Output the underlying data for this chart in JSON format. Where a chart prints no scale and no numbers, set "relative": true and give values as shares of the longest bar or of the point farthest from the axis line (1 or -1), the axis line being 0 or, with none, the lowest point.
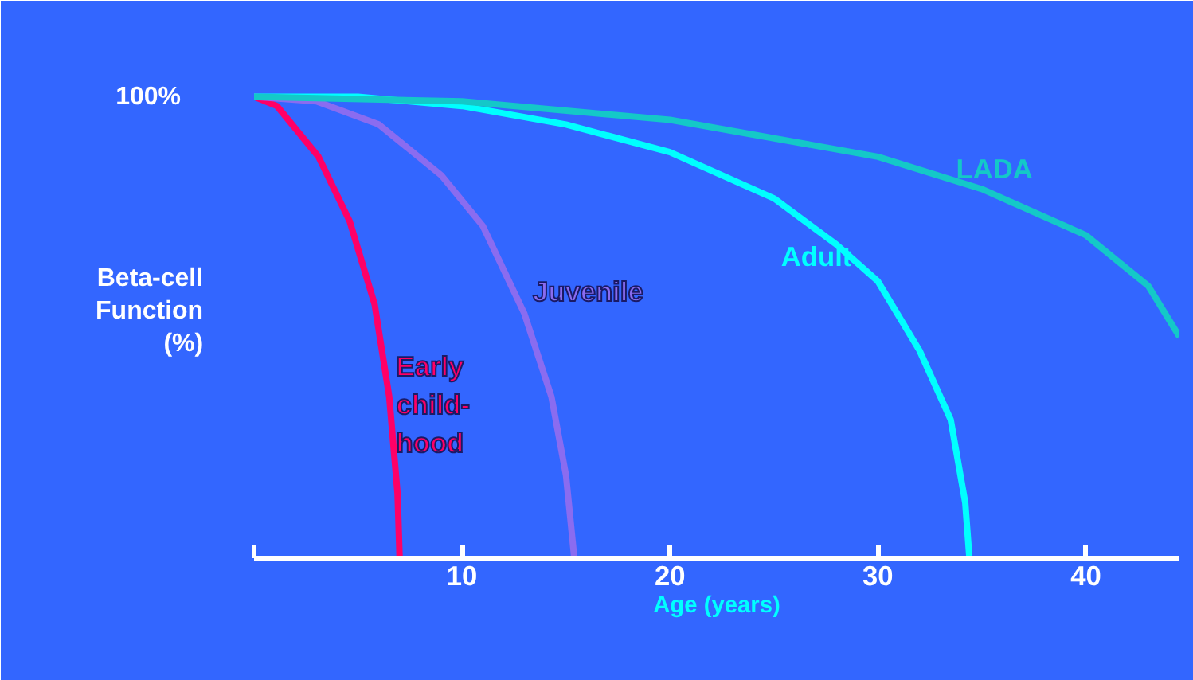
{
  "chart_data": {
    "type": "line",
    "relative": true,
    "xlabel": "Age (years)",
    "ylabel": "Beta-cell\nFunction\n(%)",
    "annotations": [
      "100%"
    ],
    "xlim": [
      0,
      44.5
    ],
    "xticks": [
      {
        "value": 0,
        "label": null
      },
      10,
      20,
      30,
      40
    ],
    "grid": false,
    "legend": false,
    "marker": "none",
    "line_style": "solid",
    "series": [
      {
        "name": "Early\nchild-\nhood",
        "color": "#ff0066",
        "x": [
          0,
          1.1,
          3.1,
          4.6,
          5.8,
          6.5,
          6.9,
          7
        ],
        "values": [
          1,
          0.98,
          0.87,
          0.73,
          0.55,
          0.35,
          0.14,
          0
        ]
      },
      {
        "name": "Juvenile",
        "color": "#8a6cf0",
        "x": [
          0,
          3,
          6,
          9,
          11,
          13,
          14.3,
          15,
          15.4
        ],
        "values": [
          1,
          0.99,
          0.94,
          0.83,
          0.72,
          0.53,
          0.35,
          0.18,
          0
        ]
      },
      {
        "name": "Adult",
        "color": "#00ffff",
        "x": [
          0,
          5,
          10,
          15,
          20,
          25,
          28,
          30,
          32,
          33.5,
          34.2,
          34.4
        ],
        "values": [
          1,
          1,
          0.98,
          0.94,
          0.88,
          0.78,
          0.68,
          0.6,
          0.45,
          0.3,
          0.12,
          0
        ]
      },
      {
        "name": "LADA",
        "color": "#14c8c8",
        "x": [
          0,
          10,
          20,
          30,
          35,
          40,
          43,
          44.5
        ],
        "values": [
          1,
          0.99,
          0.95,
          0.87,
          0.8,
          0.7,
          0.59,
          0.48
        ]
      }
    ]
  }
}
